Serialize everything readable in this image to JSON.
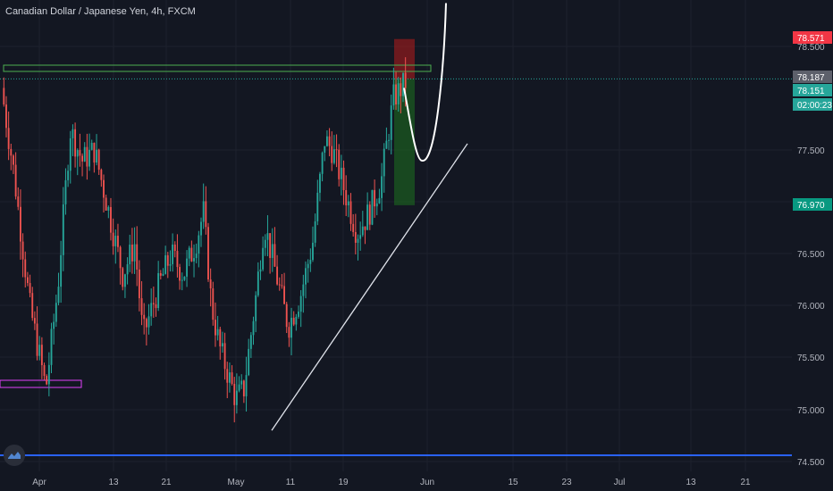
{
  "symbol_title": "Canadian Dollar / Japanese Yen, 4h, FXCM",
  "colors": {
    "background": "#131722",
    "grid": "#1e222d",
    "bull": "#26a69a",
    "bear": "#ef5350",
    "axis_text": "#b2b5be",
    "trendline": "#e0e3eb",
    "target_box": "#4caf50",
    "support_box": "#e040fb",
    "long_profit": "#1b5e20",
    "long_stop": "#b71c1c",
    "bottom_line": "#2962ff"
  },
  "price_axis": {
    "ticks": [
      "78.500",
      "77.500",
      "77.000",
      "76.500",
      "76.000",
      "75.500",
      "75.000",
      "74.500"
    ],
    "min": 74.45,
    "max": 78.95
  },
  "time_axis": {
    "ticks": [
      "Apr",
      "13",
      "21",
      "May",
      "11",
      "19",
      "Jun",
      "15",
      "23",
      "Jul",
      "13",
      "21"
    ]
  },
  "price_labels": [
    {
      "text": "78.571",
      "value": 78.571,
      "color": "#f23645"
    },
    {
      "text": "78.187",
      "value": 78.187,
      "color": "#5d606b"
    },
    {
      "text": "78.151",
      "value": 78.151,
      "color": "#26a69a"
    },
    {
      "text": "02:00:23",
      "value": 77.98,
      "color": "#26a69a"
    },
    {
      "text": "76.970",
      "value": 76.97,
      "color": "#089981"
    }
  ],
  "chart_data": {
    "type": "candlestick",
    "title": "Canadian Dollar / Japanese Yen, 4h, FXCM",
    "path": [
      {
        "t": 0.0,
        "p": 78.1
      },
      {
        "t": 0.03,
        "p": 77.3
      },
      {
        "t": 0.07,
        "p": 76.0
      },
      {
        "t": 0.11,
        "p": 75.2
      },
      {
        "t": 0.14,
        "p": 76.2
      },
      {
        "t": 0.17,
        "p": 77.7
      },
      {
        "t": 0.2,
        "p": 77.4
      },
      {
        "t": 0.23,
        "p": 77.5
      },
      {
        "t": 0.26,
        "p": 77.0
      },
      {
        "t": 0.3,
        "p": 76.3
      },
      {
        "t": 0.33,
        "p": 76.6
      },
      {
        "t": 0.35,
        "p": 75.7
      },
      {
        "t": 0.39,
        "p": 76.2
      },
      {
        "t": 0.42,
        "p": 76.5
      },
      {
        "t": 0.45,
        "p": 76.3
      },
      {
        "t": 0.48,
        "p": 76.6
      },
      {
        "t": 0.5,
        "p": 76.9
      },
      {
        "t": 0.52,
        "p": 76.0
      },
      {
        "t": 0.54,
        "p": 75.6
      },
      {
        "t": 0.58,
        "p": 75.1
      },
      {
        "t": 0.6,
        "p": 75.2
      },
      {
        "t": 0.63,
        "p": 76.1
      },
      {
        "t": 0.65,
        "p": 76.8
      },
      {
        "t": 0.68,
        "p": 76.3
      },
      {
        "t": 0.71,
        "p": 75.8
      },
      {
        "t": 0.74,
        "p": 76.1
      },
      {
        "t": 0.77,
        "p": 76.6
      },
      {
        "t": 0.8,
        "p": 77.6
      },
      {
        "t": 0.82,
        "p": 77.5
      },
      {
        "t": 0.85,
        "p": 77.1
      },
      {
        "t": 0.88,
        "p": 76.7
      },
      {
        "t": 0.91,
        "p": 76.9
      },
      {
        "t": 0.94,
        "p": 77.2
      },
      {
        "t": 0.97,
        "p": 78.0
      },
      {
        "t": 1.0,
        "p": 78.15
      }
    ],
    "trendline": {
      "from": 74.8,
      "to": 77.95
    },
    "curve_projection": [
      78.1,
      77.4,
      78.9
    ],
    "long_position": {
      "entry": 78.187,
      "stop": 78.571,
      "target": 76.97
    },
    "target_zone": {
      "top": 78.26,
      "bottom": 78.2
    },
    "support_zone": {
      "top": 75.25,
      "bottom": 75.18
    }
  }
}
